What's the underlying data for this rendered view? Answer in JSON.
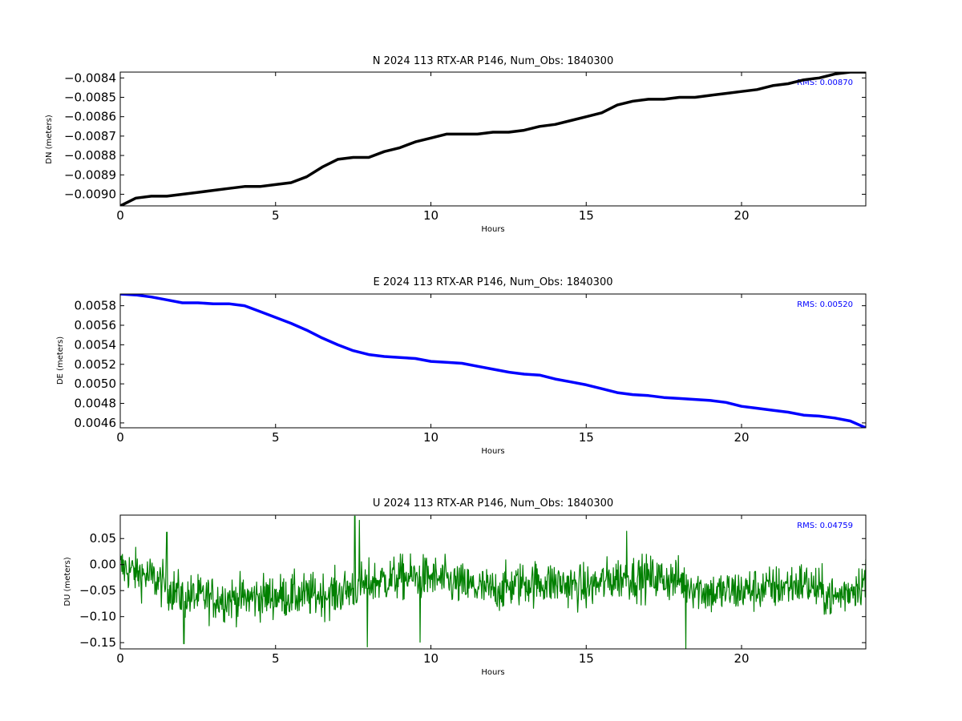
{
  "chart_data": [
    {
      "type": "line",
      "title": "N 2024 113 RTX-AR  P146, Num_Obs: 1840300",
      "xlabel": "Hours",
      "ylabel": "DN (meters)",
      "xlim": [
        0,
        24
      ],
      "ylim": [
        -0.00906,
        -0.00837
      ],
      "xticks": [
        0,
        5,
        10,
        15,
        20
      ],
      "xtick_labels": [
        "0",
        "5",
        "10",
        "15",
        "20"
      ],
      "yticks": [
        -0.009,
        -0.0089,
        -0.0088,
        -0.0087,
        -0.0086,
        -0.0085,
        -0.0084
      ],
      "ytick_labels": [
        "−0.0090",
        "−0.0089",
        "−0.0088",
        "−0.0087",
        "−0.0086",
        "−0.0085",
        "−0.0084"
      ],
      "grid": false,
      "color": "#000000",
      "annotation": "RMS:  0.00870",
      "annotation_color": "#0000ff",
      "x": [
        0,
        0.5,
        1,
        1.5,
        2,
        2.5,
        3,
        3.5,
        4,
        4.5,
        5,
        5.5,
        6,
        6.5,
        7,
        7.5,
        8,
        8.5,
        9,
        9.5,
        10,
        10.5,
        11,
        11.5,
        12,
        12.5,
        13,
        13.5,
        14,
        14.5,
        15,
        15.5,
        16,
        16.5,
        17,
        17.5,
        18,
        18.5,
        19,
        19.5,
        20,
        20.5,
        21,
        21.5,
        22,
        22.5,
        23,
        23.5,
        24
      ],
      "y": [
        -0.00906,
        -0.00902,
        -0.00901,
        -0.00901,
        -0.009,
        -0.00899,
        -0.00898,
        -0.00897,
        -0.00896,
        -0.00896,
        -0.00895,
        -0.00894,
        -0.00891,
        -0.00886,
        -0.00882,
        -0.00881,
        -0.00881,
        -0.00878,
        -0.00876,
        -0.00873,
        -0.00871,
        -0.00869,
        -0.00869,
        -0.00869,
        -0.00868,
        -0.00868,
        -0.00867,
        -0.00865,
        -0.00864,
        -0.00862,
        -0.0086,
        -0.00858,
        -0.00854,
        -0.00852,
        -0.00851,
        -0.00851,
        -0.0085,
        -0.0085,
        -0.00849,
        -0.00848,
        -0.00847,
        -0.00846,
        -0.00844,
        -0.00843,
        -0.00841,
        -0.0084,
        -0.00838,
        -0.00837,
        -0.00837
      ]
    },
    {
      "type": "line",
      "title": "E 2024 113 RTX-AR  P146, Num_Obs: 1840300",
      "xlabel": "Hours",
      "ylabel": "DE (meters)",
      "xlim": [
        0,
        24
      ],
      "ylim": [
        0.00455,
        0.00592
      ],
      "xticks": [
        0,
        5,
        10,
        15,
        20
      ],
      "xtick_labels": [
        "0",
        "5",
        "10",
        "15",
        "20"
      ],
      "yticks": [
        0.0046,
        0.0048,
        0.005,
        0.0052,
        0.0054,
        0.0056,
        0.0058
      ],
      "ytick_labels": [
        "0.0046",
        "0.0048",
        "0.0050",
        "0.0052",
        "0.0054",
        "0.0056",
        "0.0058"
      ],
      "grid": false,
      "color": "#0000ff",
      "annotation": "RMS:  0.00520",
      "annotation_color": "#0000ff",
      "x": [
        0,
        0.5,
        1,
        1.5,
        2,
        2.5,
        3,
        3.5,
        4,
        4.5,
        5,
        5.5,
        6,
        6.5,
        7,
        7.5,
        8,
        8.5,
        9,
        9.5,
        10,
        10.5,
        11,
        11.5,
        12,
        12.5,
        13,
        13.5,
        14,
        14.5,
        15,
        15.5,
        16,
        16.5,
        17,
        17.5,
        18,
        18.5,
        19,
        19.5,
        20,
        20.5,
        21,
        21.5,
        22,
        22.5,
        23,
        23.5,
        24
      ],
      "y": [
        0.00592,
        0.00591,
        0.00589,
        0.00586,
        0.00583,
        0.00583,
        0.00582,
        0.00582,
        0.0058,
        0.00574,
        0.00568,
        0.00562,
        0.00555,
        0.00547,
        0.0054,
        0.00534,
        0.0053,
        0.00528,
        0.00527,
        0.00526,
        0.00523,
        0.00522,
        0.00521,
        0.00518,
        0.00515,
        0.00512,
        0.0051,
        0.00509,
        0.00505,
        0.00502,
        0.00499,
        0.00495,
        0.00491,
        0.00489,
        0.00488,
        0.00486,
        0.00485,
        0.00484,
        0.00483,
        0.00481,
        0.00477,
        0.00475,
        0.00473,
        0.00471,
        0.00468,
        0.00467,
        0.00465,
        0.00462,
        0.00455
      ]
    },
    {
      "type": "line",
      "title": "U 2024 113 RTX-AR  P146, Num_Obs: 1840300",
      "xlabel": "Hours",
      "ylabel": "DU (meters)",
      "xlim": [
        0,
        24
      ],
      "ylim": [
        -0.162,
        0.095
      ],
      "xticks": [
        0,
        5,
        10,
        15,
        20
      ],
      "xtick_labels": [
        "0",
        "5",
        "10",
        "15",
        "20"
      ],
      "yticks": [
        -0.15,
        -0.1,
        -0.05,
        0.0,
        0.05
      ],
      "ytick_labels": [
        "−0.15",
        "−0.10",
        "−0.05",
        "0.00",
        "0.05"
      ],
      "grid": false,
      "color": "#008000",
      "annotation": "RMS:  0.04759",
      "annotation_color": "#0000ff",
      "x": [
        0,
        1,
        2,
        3,
        4,
        5,
        6,
        7,
        8,
        9,
        10,
        11,
        12,
        13,
        14,
        15,
        16,
        17,
        18,
        19,
        20,
        21,
        22,
        23,
        24
      ],
      "y": [
        -0.005,
        -0.025,
        -0.06,
        -0.065,
        -0.065,
        -0.06,
        -0.06,
        -0.055,
        -0.035,
        -0.025,
        -0.025,
        -0.04,
        -0.05,
        -0.035,
        -0.035,
        -0.045,
        -0.025,
        -0.025,
        -0.03,
        -0.055,
        -0.05,
        -0.045,
        -0.035,
        -0.065,
        -0.03
      ],
      "noise_amplitude": 0.05,
      "spikes": [
        {
          "x": 1.5,
          "y": 0.062
        },
        {
          "x": 7.55,
          "y": 0.093
        },
        {
          "x": 7.7,
          "y": 0.085
        },
        {
          "x": 16.3,
          "y": 0.064
        },
        {
          "x": 2.05,
          "y": -0.152
        },
        {
          "x": 7.95,
          "y": -0.158
        },
        {
          "x": 18.2,
          "y": -0.162
        },
        {
          "x": 9.65,
          "y": -0.149
        }
      ]
    }
  ]
}
